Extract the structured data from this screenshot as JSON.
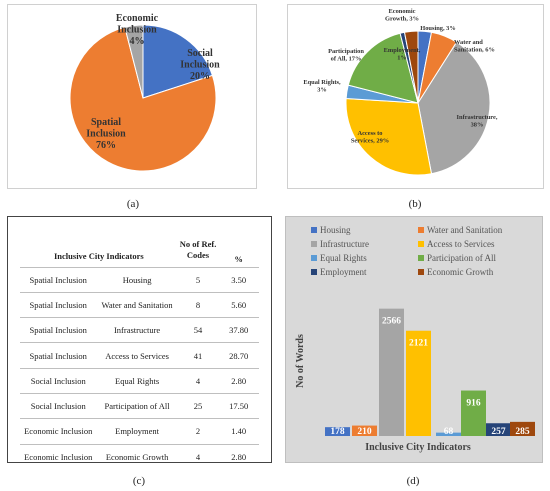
{
  "charts": {
    "pie_a": {
      "type": "pie",
      "slices": [
        {
          "name": "Social Inclusion",
          "value": 20,
          "label": "Social Inclusion",
          "pct": "20%",
          "color": "#4472C4"
        },
        {
          "name": "Spatial Inclusion",
          "value": 76,
          "label": "Spatial Inclusion",
          "pct": "76%",
          "color": "#ED7D31"
        },
        {
          "name": "Economic Inclusion",
          "value": 4,
          "label": "Economic Inclusion",
          "pct": "4%",
          "color": "#A5A5A5"
        }
      ]
    },
    "pie_b": {
      "type": "pie",
      "slices": [
        {
          "name": "Housing",
          "value": 3,
          "label": "Housing, 3%",
          "color": "#4472C4"
        },
        {
          "name": "Water and Sanitation",
          "value": 6,
          "label": "Water and Sanitation, 6%",
          "color": "#ED7D31"
        },
        {
          "name": "Infrastructure",
          "value": 38,
          "label": "Infrastructure, 38%",
          "color": "#A5A5A5"
        },
        {
          "name": "Access to Services",
          "value": 29,
          "label": "Access to Services, 29%",
          "color": "#FFC000"
        },
        {
          "name": "Equal Rights",
          "value": 3,
          "label": "Equal Rights, 3%",
          "color": "#5B9BD5"
        },
        {
          "name": "Participation of All",
          "value": 17,
          "label": "Participation of All, 17%",
          "color": "#70AD47"
        },
        {
          "name": "Employment",
          "value": 1,
          "label": "Employment, 1%",
          "color": "#264478"
        },
        {
          "name": "Economic Growth",
          "value": 3,
          "label": "Economic Growth, 3%",
          "color": "#9E480E"
        }
      ]
    },
    "table_c": {
      "type": "table",
      "headers": [
        "Inclusive City Indicators",
        "No of Ref. Codes",
        "%"
      ],
      "rows": [
        [
          "Spatial Inclusion",
          "Housing",
          "5",
          "3.50"
        ],
        [
          "Spatial Inclusion",
          "Water and Sanitation",
          "8",
          "5.60"
        ],
        [
          "Spatial Inclusion",
          "Infrastructure",
          "54",
          "37.80"
        ],
        [
          "Spatial Inclusion",
          "Access to Services",
          "41",
          "28.70"
        ],
        [
          "Social Inclusion",
          "Equal Rights",
          "4",
          "2.80"
        ],
        [
          "Social Inclusion",
          "Participation of All",
          "25",
          "17.50"
        ],
        [
          "Economic Inclusion",
          "Employment",
          "2",
          "1.40"
        ],
        [
          "Economic Inclusion",
          "Economic Growth",
          "4",
          "2.80"
        ]
      ]
    },
    "bar_d": {
      "type": "bar",
      "xlabel": "Inclusive City Indicators",
      "ylabel": "No of Words",
      "ylim": [
        0,
        2700
      ],
      "series": [
        {
          "name": "Housing",
          "value": 178,
          "color": "#4472C4"
        },
        {
          "name": "Water and Sanitation",
          "value": 210,
          "color": "#ED7D31"
        },
        {
          "name": "Infrastructure",
          "value": 2566,
          "color": "#A5A5A5"
        },
        {
          "name": "Access to Services",
          "value": 2121,
          "color": "#FFC000"
        },
        {
          "name": "Equal Rights",
          "value": 68,
          "color": "#5B9BD5"
        },
        {
          "name": "Participation of All",
          "value": 916,
          "color": "#70AD47"
        },
        {
          "name": "Employment",
          "value": 257,
          "color": "#264478"
        },
        {
          "name": "Economic Growth",
          "value": 285,
          "color": "#9E480E"
        }
      ]
    }
  },
  "captions": {
    "a": "(a)",
    "b": "(b)",
    "c": "(c)",
    "d": "(d)"
  }
}
